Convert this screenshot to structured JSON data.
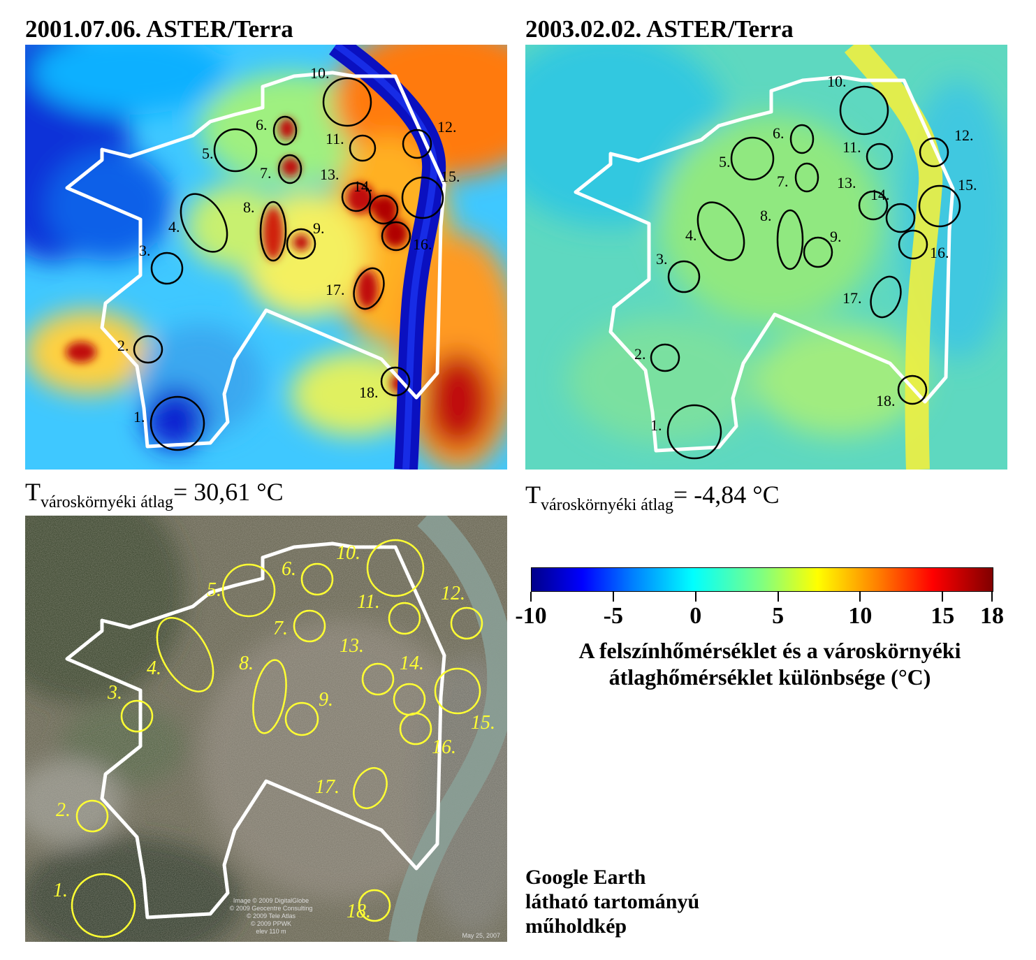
{
  "panels": {
    "summer": {
      "title": "2001.07.06.  ASTER/Terra",
      "avg_prefix": "T",
      "avg_sub": "városkörnyéki átlag",
      "avg_value": "= 30,61 °C"
    },
    "winter": {
      "title": "2003.02.02.  ASTER/Terra",
      "avg_prefix": "T",
      "avg_sub": "városkörnyéki átlag",
      "avg_value": "= -4,84 °C"
    },
    "google": {
      "credit_lines": [
        "Image © 2009 DigitalGlobe",
        "© 2009 Geocentre Consulting",
        "© 2009 Tele Atlas",
        "© 2009 PPWK",
        "elev  110 m"
      ],
      "date": "May 25, 2007"
    }
  },
  "zones": [
    "1.",
    "2.",
    "3.",
    "4.",
    "5.",
    "6.",
    "7.",
    "8.",
    "9.",
    "10.",
    "11.",
    "12.",
    "13.",
    "14.",
    "15.",
    "16.",
    "17.",
    "18."
  ],
  "colorbar": {
    "ticks": [
      -10,
      -5,
      0,
      5,
      10,
      15,
      18
    ],
    "tick_labels": [
      "-10",
      "-5",
      "0",
      "5",
      "10",
      "15",
      "18"
    ],
    "min": -10,
    "max": 18,
    "title_line1": "A felszínhőmérséklet és a városkörnyéki",
    "title_line2": "átlaghőmérséklet különbsége (°C)",
    "colors": [
      "#00008a",
      "#0000ff",
      "#0080ff",
      "#00ffff",
      "#80ff80",
      "#ffff00",
      "#ff8000",
      "#ff0000",
      "#800000"
    ]
  },
  "google_label": [
    "Google Earth",
    "látható tartományú",
    "műholdkép"
  ],
  "colors": {
    "boundary": "#ffffff",
    "circle_thermal": "#000000",
    "circle_google": "#ffff33"
  }
}
